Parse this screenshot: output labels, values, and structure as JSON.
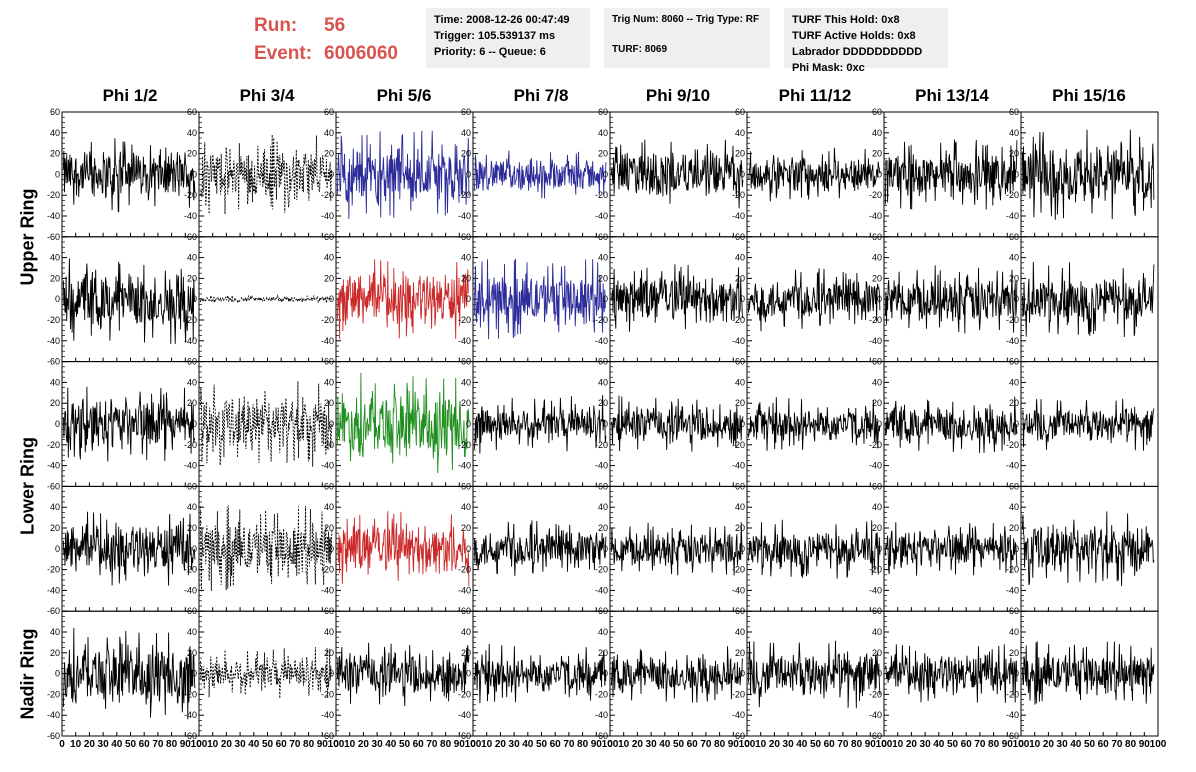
{
  "header": {
    "run_label": "Run:",
    "run_value": "56",
    "event_label": "Event:",
    "event_value": "6006060"
  },
  "info_box_1": {
    "time": "Time: 2008-12-26 00:47:49",
    "trigger": "Trigger: 105.539137 ms",
    "priority": "Priority: 6 -- Queue: 6"
  },
  "info_box_2": {
    "trig": "Trig Num: 8060 -- Trig Type: RF",
    "turf": "TURF: 8069"
  },
  "info_box_3": {
    "hold": "TURF This Hold: 0x8",
    "active": "TURF Active Holds: 0x8",
    "labrador": "Labrador DDDDDDDDDD",
    "phimask": "Phi Mask: 0xc"
  },
  "columns": [
    "Phi 1/2",
    "Phi 3/4",
    "Phi 5/6",
    "Phi 7/8",
    "Phi 9/10",
    "Phi 11/12",
    "Phi 13/14",
    "Phi 15/16"
  ],
  "row_labels": [
    {
      "label": "Upper Ring",
      "rows": [
        0,
        1
      ]
    },
    {
      "label": "Lower Ring",
      "rows": [
        2,
        3
      ]
    },
    {
      "label": "Nadir Ring",
      "rows": [
        4
      ]
    }
  ],
  "colors": {
    "default": "#000000",
    "blue": "#2b2b9a",
    "red": "#cc2a2a",
    "green": "#1f8f1f",
    "header_red": "#d9534f",
    "box_bg": "#efefef"
  },
  "chart_data": {
    "type": "line",
    "xlabel": "",
    "ylabel": "",
    "xlim": [
      0,
      100
    ],
    "ylim": [
      -60,
      60
    ],
    "x_ticks": [
      0,
      10,
      20,
      30,
      40,
      50,
      60,
      70,
      80,
      90,
      100
    ],
    "x_tick_labels": [
      "0",
      "10",
      "20",
      "30",
      "40",
      "50",
      "60",
      "70",
      "80",
      "90",
      "100"
    ],
    "y_ticks": [
      -60,
      -40,
      -20,
      0,
      20,
      40,
      60
    ],
    "y_tick_labels": [
      "-60",
      "-40",
      "-20",
      "0",
      "20",
      "40",
      "60"
    ],
    "grid": false,
    "panels": [
      [
        {
          "color": "default",
          "dashed": false,
          "amplitude": 28
        },
        {
          "color": "default",
          "dashed": true,
          "amplitude": 30
        },
        {
          "color": "blue",
          "dashed": false,
          "amplitude": 34
        },
        {
          "color": "blue",
          "dashed": false,
          "amplitude": 18
        },
        {
          "color": "default",
          "dashed": false,
          "amplitude": 26
        },
        {
          "color": "default",
          "dashed": false,
          "amplitude": 20
        },
        {
          "color": "default",
          "dashed": false,
          "amplitude": 26
        },
        {
          "color": "default",
          "dashed": false,
          "amplitude": 34
        }
      ],
      [
        {
          "color": "default",
          "dashed": false,
          "amplitude": 34
        },
        {
          "color": "default",
          "dashed": true,
          "amplitude": 3
        },
        {
          "color": "red",
          "dashed": false,
          "amplitude": 30
        },
        {
          "color": "blue",
          "dashed": false,
          "amplitude": 30
        },
        {
          "color": "default",
          "dashed": false,
          "amplitude": 26
        },
        {
          "color": "default",
          "dashed": false,
          "amplitude": 24
        },
        {
          "color": "default",
          "dashed": false,
          "amplitude": 26
        },
        {
          "color": "default",
          "dashed": false,
          "amplitude": 28
        }
      ],
      [
        {
          "color": "default",
          "dashed": false,
          "amplitude": 28
        },
        {
          "color": "default",
          "dashed": true,
          "amplitude": 32
        },
        {
          "color": "green",
          "dashed": false,
          "amplitude": 38
        },
        {
          "color": "default",
          "dashed": false,
          "amplitude": 22
        },
        {
          "color": "default",
          "dashed": false,
          "amplitude": 22
        },
        {
          "color": "default",
          "dashed": false,
          "amplitude": 20
        },
        {
          "color": "default",
          "dashed": false,
          "amplitude": 22
        },
        {
          "color": "default",
          "dashed": false,
          "amplitude": 20
        }
      ],
      [
        {
          "color": "default",
          "dashed": false,
          "amplitude": 28
        },
        {
          "color": "default",
          "dashed": true,
          "amplitude": 32
        },
        {
          "color": "red",
          "dashed": false,
          "amplitude": 28
        },
        {
          "color": "default",
          "dashed": false,
          "amplitude": 22
        },
        {
          "color": "default",
          "dashed": false,
          "amplitude": 20
        },
        {
          "color": "default",
          "dashed": false,
          "amplitude": 22
        },
        {
          "color": "default",
          "dashed": false,
          "amplitude": 20
        },
        {
          "color": "default",
          "dashed": false,
          "amplitude": 28
        }
      ],
      [
        {
          "color": "default",
          "dashed": false,
          "amplitude": 34
        },
        {
          "color": "default",
          "dashed": true,
          "amplitude": 20
        },
        {
          "color": "default",
          "dashed": false,
          "amplitude": 26
        },
        {
          "color": "default",
          "dashed": false,
          "amplitude": 22
        },
        {
          "color": "default",
          "dashed": false,
          "amplitude": 22
        },
        {
          "color": "default",
          "dashed": false,
          "amplitude": 26
        },
        {
          "color": "default",
          "dashed": false,
          "amplitude": 22
        },
        {
          "color": "default",
          "dashed": false,
          "amplitude": 24
        }
      ]
    ]
  }
}
